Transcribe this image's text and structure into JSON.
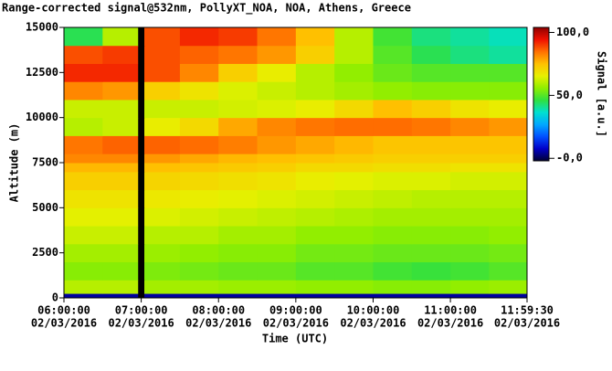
{
  "chart_data": {
    "type": "heatmap",
    "title": "Range-corrected signal@532nm, PollyXT_NOA, NOA, Athens, Greece",
    "x_label": "Time (UTC)",
    "y_label": "Altitude (m)",
    "colorbar_label": "Signal [a.u.]",
    "xlim": [
      6,
      11.991667
    ],
    "xticks": [
      {
        "value": 6,
        "label": "06:00:00",
        "sublabel": "02/03/2016"
      },
      {
        "value": 7,
        "label": "07:00:00",
        "sublabel": "02/03/2016"
      },
      {
        "value": 8,
        "label": "08:00:00",
        "sublabel": "02/03/2016"
      },
      {
        "value": 9,
        "label": "09:00:00",
        "sublabel": "02/03/2016"
      },
      {
        "value": 10,
        "label": "10:00:00",
        "sublabel": "02/03/2016"
      },
      {
        "value": 11,
        "label": "11:00:00",
        "sublabel": "02/03/2016"
      },
      {
        "value": 11.991667,
        "label": "11:59:30",
        "sublabel": "02/03/2016"
      }
    ],
    "ylim": [
      0,
      15000
    ],
    "yticks": [
      0,
      2500,
      5000,
      7500,
      10000,
      12500,
      15000
    ],
    "clim": [
      -2,
      104
    ],
    "cticks": [
      {
        "value": 100,
        "label": "100,0"
      },
      {
        "value": 50,
        "label": "50,0"
      },
      {
        "value": 0,
        "label": "-0,0"
      }
    ],
    "colormap": [
      "#000033",
      "#0000c8",
      "#0050ff",
      "#00a8ff",
      "#00e0d0",
      "#30e040",
      "#90ee00",
      "#e8f000",
      "#ffc000",
      "#ff7000",
      "#f01000",
      "#900000"
    ],
    "null_color": "#000000",
    "x_bins": [
      6,
      6.5,
      6.96,
      7.04,
      7.5,
      8,
      8.5,
      9,
      9.5,
      10,
      10.5,
      11,
      11.5,
      11.991667
    ],
    "y_bins": [
      0,
      250,
      1000,
      2000,
      3000,
      4000,
      5000,
      6000,
      7000,
      7500,
      8000,
      9000,
      10000,
      11000,
      12000,
      13000,
      14000,
      15000
    ],
    "values": [
      [
        5,
        5,
        null,
        5,
        5,
        5,
        5,
        5,
        5,
        5,
        5,
        5,
        5
      ],
      [
        60,
        60,
        null,
        58,
        58,
        57,
        57,
        56,
        56,
        55,
        55,
        56,
        57
      ],
      [
        55,
        55,
        null,
        54,
        53,
        52,
        52,
        50,
        50,
        48,
        47,
        48,
        50
      ],
      [
        58,
        58,
        null,
        57,
        56,
        55,
        55,
        53,
        53,
        52,
        52,
        52,
        53
      ],
      [
        62,
        62,
        null,
        60,
        60,
        58,
        58,
        56,
        56,
        55,
        55,
        55,
        56
      ],
      [
        65,
        65,
        null,
        64,
        63,
        62,
        61,
        60,
        59,
        58,
        58,
        58,
        58
      ],
      [
        68,
        68,
        null,
        67,
        66,
        65,
        64,
        63,
        62,
        61,
        60,
        60,
        60
      ],
      [
        72,
        72,
        null,
        71,
        70,
        69,
        68,
        66,
        65,
        64,
        64,
        63,
        63
      ],
      [
        76,
        76,
        null,
        75,
        74,
        73,
        72,
        70,
        70,
        69,
        69,
        68,
        68
      ],
      [
        82,
        82,
        null,
        80,
        78,
        76,
        75,
        74,
        73,
        72,
        72,
        72,
        72
      ],
      [
        84,
        86,
        null,
        86,
        85,
        83,
        80,
        78,
        76,
        74,
        74,
        74,
        74
      ],
      [
        60,
        62,
        null,
        66,
        70,
        78,
        82,
        84,
        85,
        85,
        84,
        82,
        80
      ],
      [
        62,
        62,
        null,
        62,
        62,
        63,
        64,
        66,
        70,
        75,
        72,
        68,
        66
      ],
      [
        82,
        80,
        null,
        72,
        68,
        64,
        62,
        60,
        58,
        56,
        55,
        55,
        55
      ],
      [
        92,
        92,
        null,
        88,
        82,
        72,
        66,
        60,
        56,
        52,
        50,
        50,
        50
      ],
      [
        88,
        90,
        null,
        88,
        86,
        84,
        80,
        72,
        60,
        50,
        45,
        42,
        40
      ],
      [
        45,
        60,
        null,
        88,
        92,
        90,
        84,
        75,
        60,
        48,
        42,
        40,
        38
      ]
    ]
  }
}
